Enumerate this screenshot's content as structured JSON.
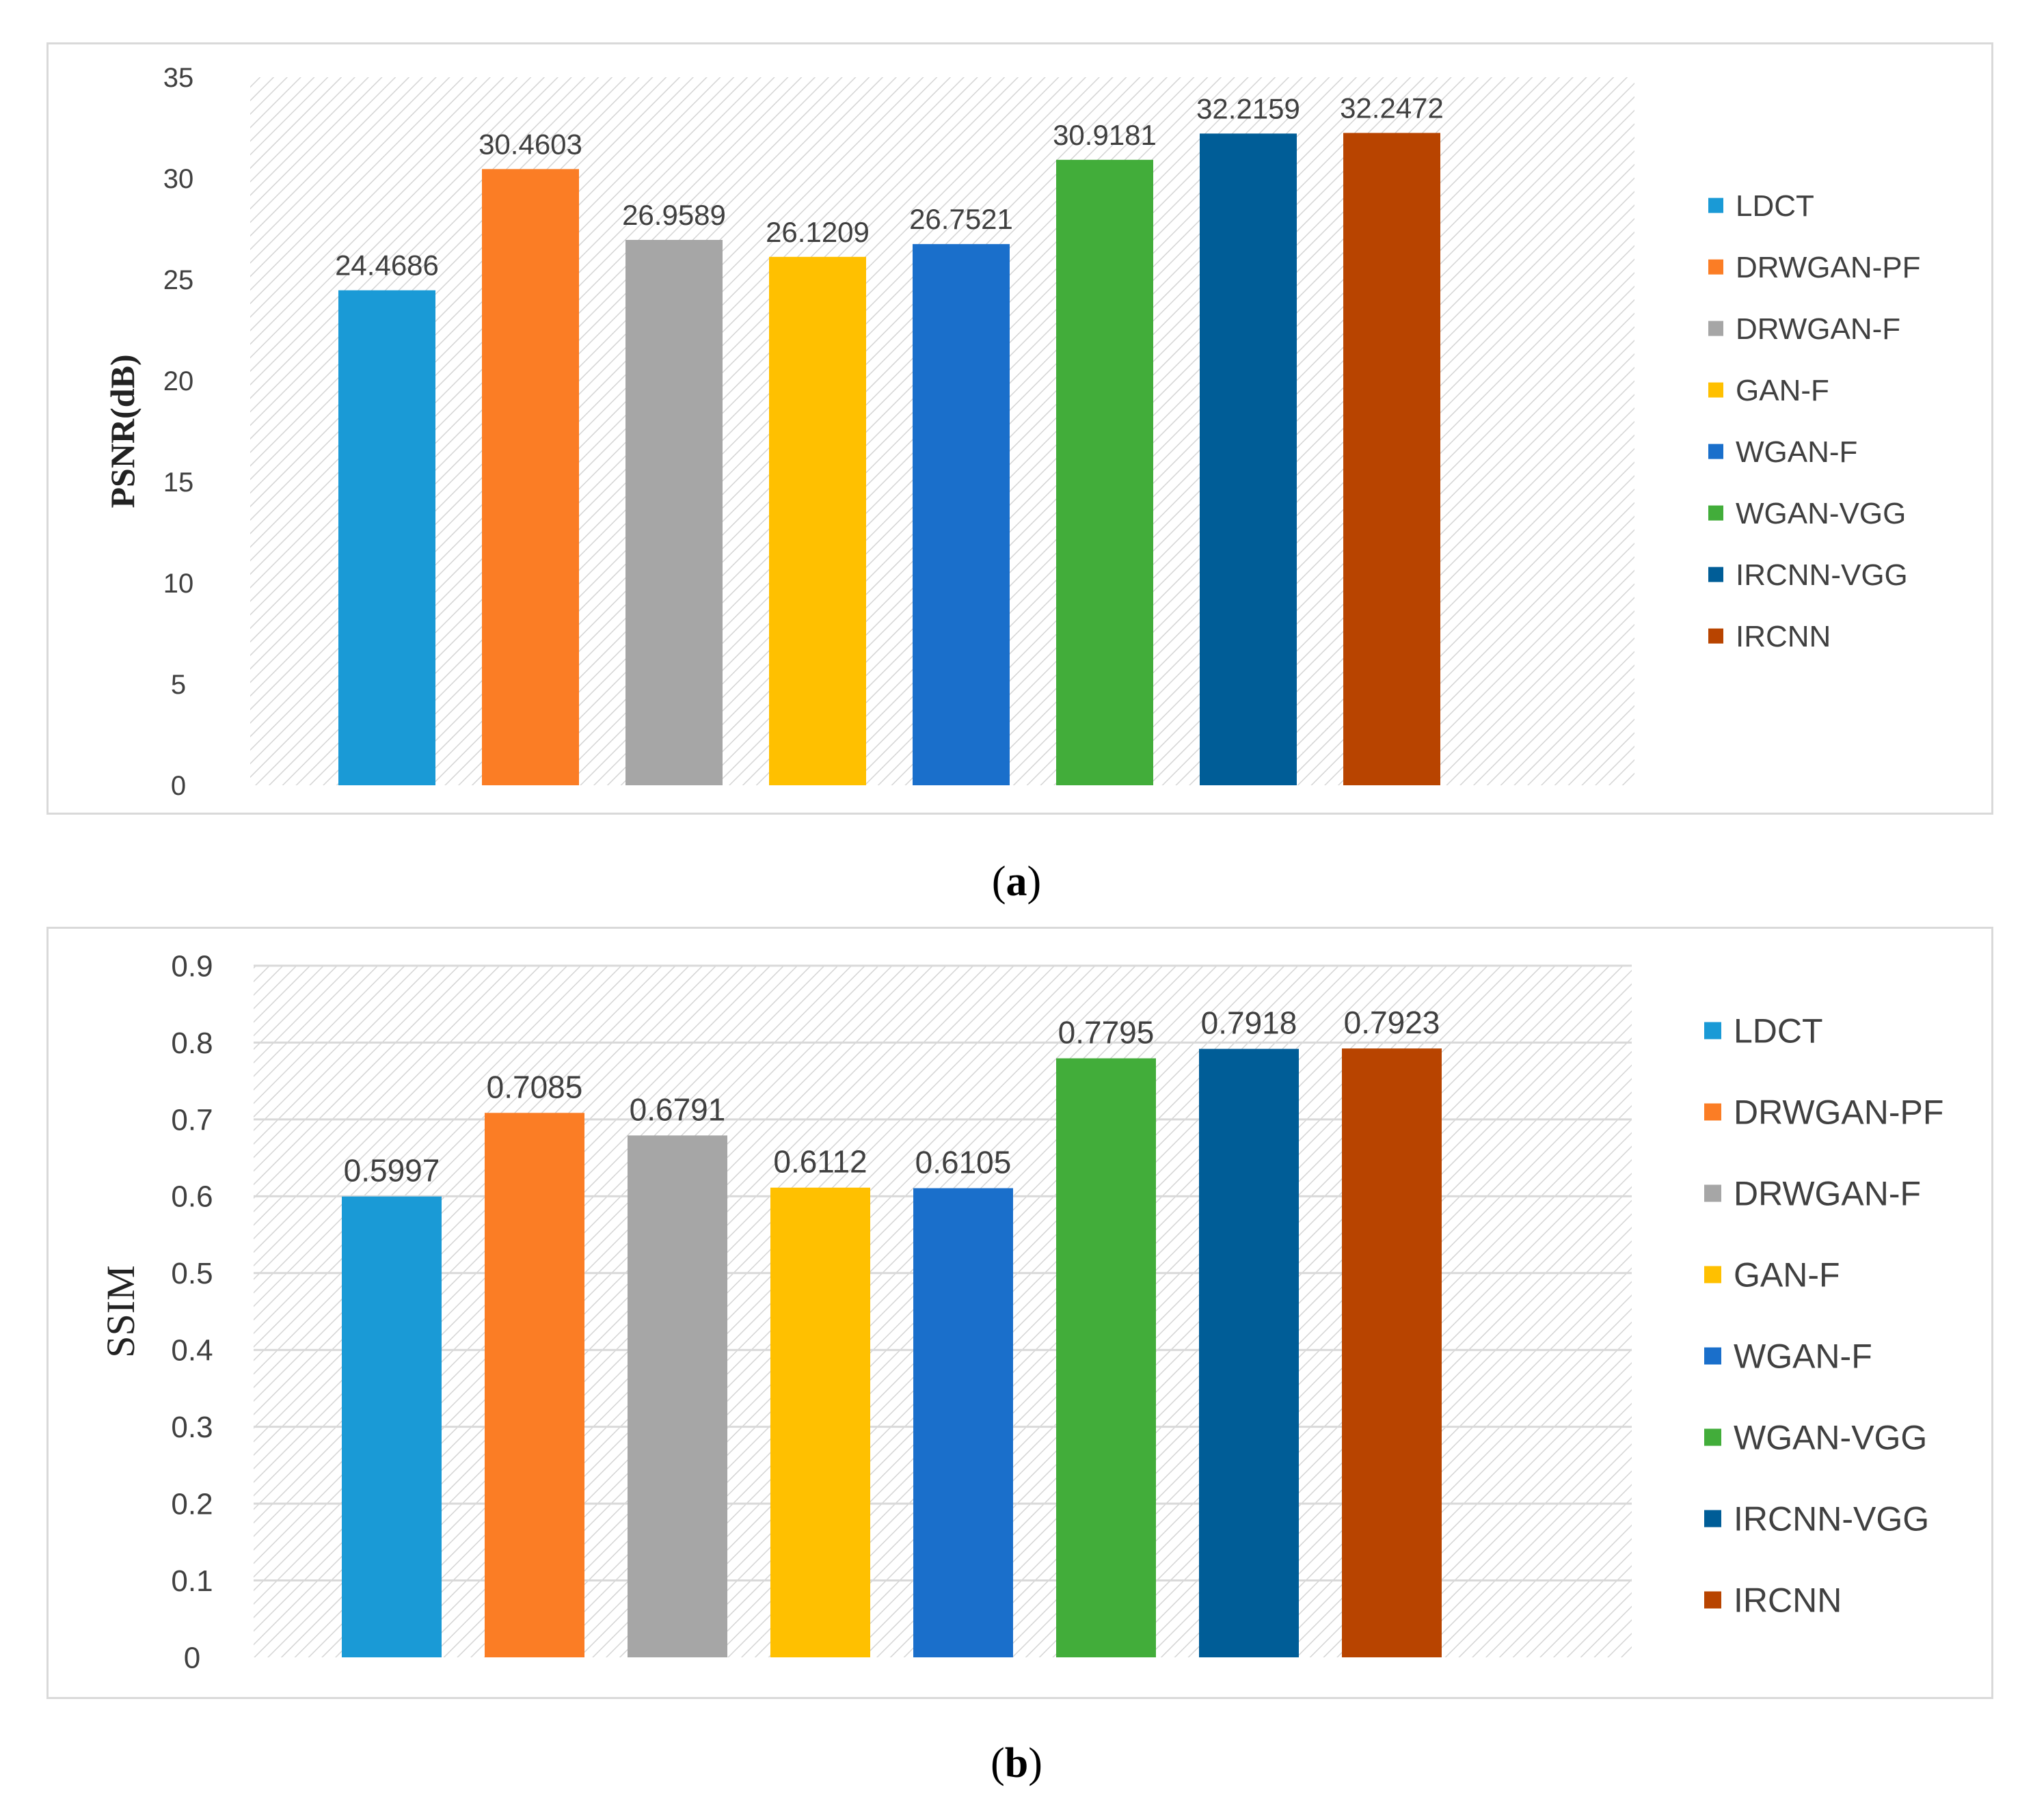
{
  "chart_data": [
    {
      "id": "a",
      "type": "bar",
      "caption_letter": "a",
      "ylabel": "PSNR(dB)",
      "ylim": [
        0,
        35
      ],
      "yticks": [
        "0",
        "5",
        "10",
        "15",
        "20",
        "25",
        "30",
        "35"
      ],
      "ytick_values": [
        0,
        5,
        10,
        15,
        20,
        25,
        30,
        35
      ],
      "gridlines": false,
      "categories": [
        "LDCT",
        "DRWGAN-PF",
        "DRWGAN-F",
        "GAN-F",
        "WGAN-F",
        "WGAN-VGG",
        "IRCNN-VGG",
        "IRCNN"
      ],
      "values": [
        24.4686,
        30.4603,
        26.9589,
        26.1209,
        26.7521,
        30.9181,
        32.2159,
        32.2472
      ],
      "value_labels": [
        "24.4686",
        "30.4603",
        "26.9589",
        "26.1209",
        "26.7521",
        "30.9181",
        "32.2159",
        "32.2472"
      ],
      "colors": [
        "#1a9ad6",
        "#fb7d25",
        "#a6a6a6",
        "#ffc000",
        "#1a6fcb",
        "#42ad3a",
        "#005d97",
        "#b84400"
      ],
      "legend_position": "right"
    },
    {
      "id": "b",
      "type": "bar",
      "caption_letter": "b",
      "ylabel": "SSIM",
      "ylim": [
        0,
        0.9
      ],
      "yticks": [
        "0",
        "0.1",
        "0.2",
        "0.3",
        "0.4",
        "0.5",
        "0.6",
        "0.7",
        "0.8",
        "0.9"
      ],
      "ytick_values": [
        0,
        0.1,
        0.2,
        0.3,
        0.4,
        0.5,
        0.6,
        0.7,
        0.8,
        0.9
      ],
      "gridlines": true,
      "categories": [
        "LDCT",
        "DRWGAN-PF",
        "DRWGAN-F",
        "GAN-F",
        "WGAN-F",
        "WGAN-VGG",
        "IRCNN-VGG",
        "IRCNN"
      ],
      "values": [
        0.5997,
        0.7085,
        0.6791,
        0.6112,
        0.6105,
        0.7795,
        0.7918,
        0.7923
      ],
      "value_labels": [
        "0.5997",
        "0.7085",
        "0.6791",
        "0.6112",
        "0.6105",
        "0.7795",
        "0.7918",
        "0.7923"
      ],
      "colors": [
        "#1a9ad6",
        "#fb7d25",
        "#a6a6a6",
        "#ffc000",
        "#1a6fcb",
        "#42ad3a",
        "#005d97",
        "#b84400"
      ],
      "legend_position": "right"
    }
  ]
}
